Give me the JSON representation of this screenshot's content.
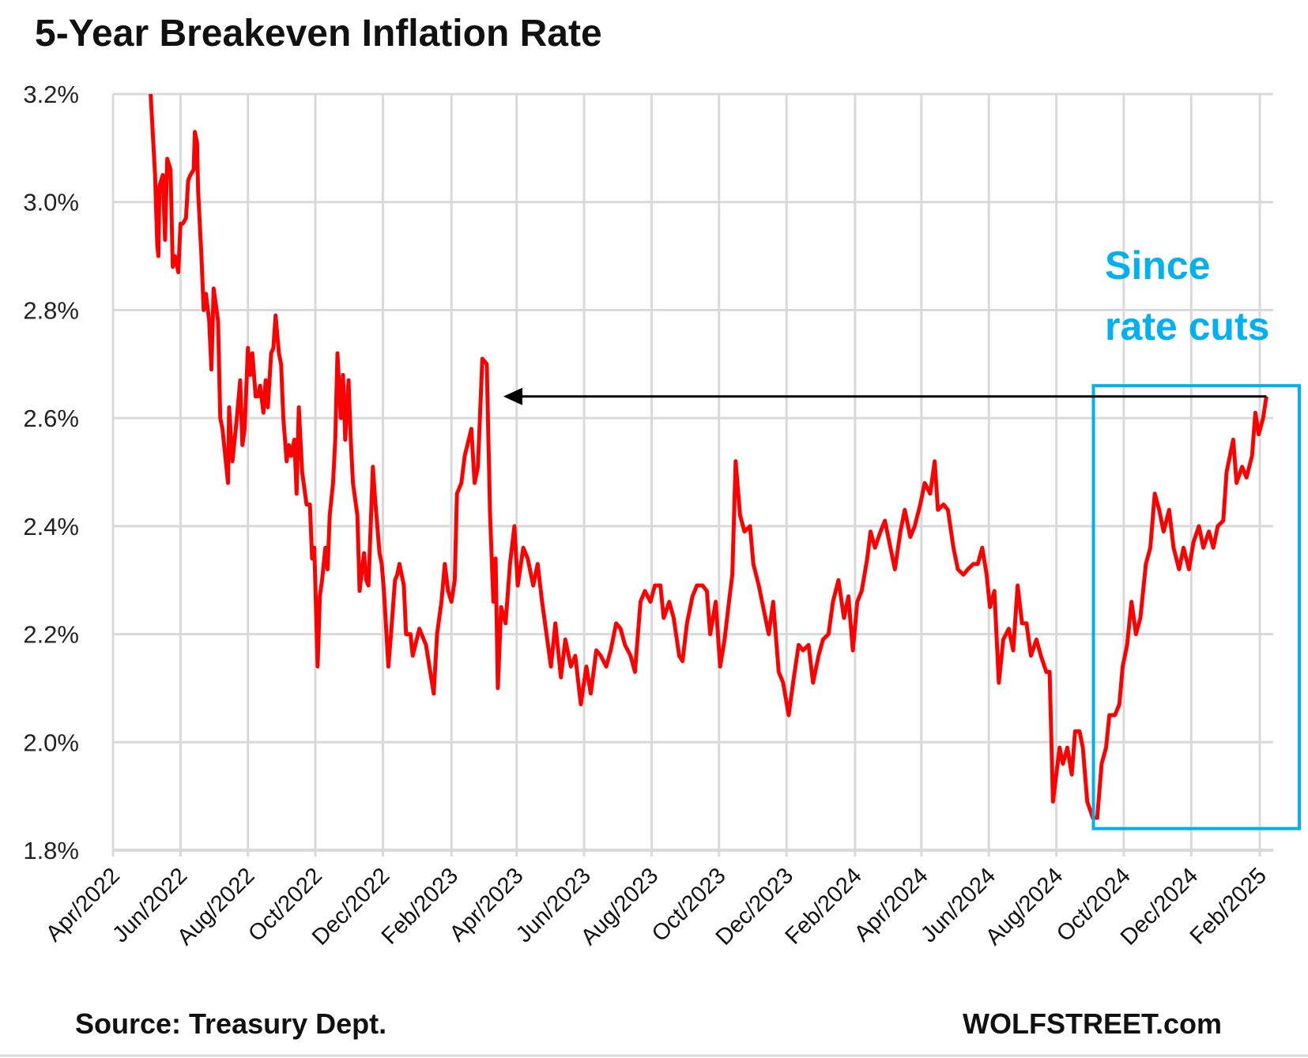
{
  "chart_data": {
    "type": "line",
    "title": "5-Year Breakeven Inflation Rate",
    "xlabel": "",
    "ylabel": "",
    "x_unit": "days since 2022-04-01",
    "ylim": [
      1.8,
      3.2
    ],
    "yticks": [
      "1.8%",
      "2.0%",
      "2.2%",
      "2.4%",
      "2.6%",
      "2.8%",
      "3.0%",
      "3.2%"
    ],
    "ytick_values": [
      1.8,
      2.0,
      2.2,
      2.4,
      2.6,
      2.8,
      3.0,
      3.2
    ],
    "xticks": [
      {
        "label": "Apr/2022",
        "day": 0
      },
      {
        "label": "Jun/2022",
        "day": 61
      },
      {
        "label": "Aug/2022",
        "day": 122
      },
      {
        "label": "Oct/2022",
        "day": 183
      },
      {
        "label": "Dec/2022",
        "day": 244
      },
      {
        "label": "Feb/2023",
        "day": 306
      },
      {
        "label": "Apr/2023",
        "day": 365
      },
      {
        "label": "Jun/2023",
        "day": 426
      },
      {
        "label": "Aug/2023",
        "day": 487
      },
      {
        "label": "Oct/2023",
        "day": 548
      },
      {
        "label": "Dec/2023",
        "day": 609
      },
      {
        "label": "Feb/2024",
        "day": 671
      },
      {
        "label": "Apr/2024",
        "day": 731
      },
      {
        "label": "Jun/2024",
        "day": 792
      },
      {
        "label": "Aug/2024",
        "day": 853
      },
      {
        "label": "Oct/2024",
        "day": 914
      },
      {
        "label": "Dec/2024",
        "day": 975
      },
      {
        "label": "Feb/2025",
        "day": 1037
      }
    ],
    "xlim_days": [
      0,
      1049
    ],
    "grid": true,
    "series": [
      {
        "name": "5-Year Breakeven Inflation Rate",
        "color": "#FF0000",
        "points": [
          [
            34,
            3.2
          ],
          [
            38,
            3.05
          ],
          [
            40,
            2.92
          ],
          [
            41,
            2.9
          ],
          [
            42,
            3.03
          ],
          [
            45,
            3.05
          ],
          [
            47,
            2.93
          ],
          [
            49,
            3.08
          ],
          [
            52,
            3.06
          ],
          [
            54,
            2.88
          ],
          [
            56,
            2.9
          ],
          [
            59,
            2.87
          ],
          [
            61,
            2.96
          ],
          [
            63,
            2.96
          ],
          [
            66,
            2.97
          ],
          [
            68,
            3.04
          ],
          [
            70,
            3.05
          ],
          [
            73,
            3.06
          ],
          [
            74,
            3.13
          ],
          [
            76,
            3.11
          ],
          [
            77,
            3.02
          ],
          [
            80,
            2.9
          ],
          [
            82,
            2.8
          ],
          [
            84,
            2.83
          ],
          [
            87,
            2.78
          ],
          [
            89,
            2.69
          ],
          [
            91,
            2.84
          ],
          [
            95,
            2.78
          ],
          [
            97,
            2.6
          ],
          [
            99,
            2.58
          ],
          [
            102,
            2.52
          ],
          [
            104,
            2.48
          ],
          [
            105,
            2.62
          ],
          [
            108,
            2.52
          ],
          [
            110,
            2.56
          ],
          [
            112,
            2.6
          ],
          [
            115,
            2.67
          ],
          [
            117,
            2.55
          ],
          [
            119,
            2.58
          ],
          [
            122,
            2.73
          ],
          [
            124,
            2.68
          ],
          [
            126,
            2.72
          ],
          [
            129,
            2.64
          ],
          [
            131,
            2.64
          ],
          [
            133,
            2.66
          ],
          [
            136,
            2.61
          ],
          [
            138,
            2.67
          ],
          [
            140,
            2.62
          ],
          [
            143,
            2.72
          ],
          [
            145,
            2.73
          ],
          [
            147,
            2.79
          ],
          [
            150,
            2.72
          ],
          [
            152,
            2.7
          ],
          [
            154,
            2.6
          ],
          [
            157,
            2.52
          ],
          [
            159,
            2.55
          ],
          [
            161,
            2.53
          ],
          [
            164,
            2.56
          ],
          [
            166,
            2.46
          ],
          [
            168,
            2.62
          ],
          [
            171,
            2.5
          ],
          [
            173,
            2.47
          ],
          [
            175,
            2.44
          ],
          [
            178,
            2.44
          ],
          [
            180,
            2.34
          ],
          [
            182,
            2.36
          ],
          [
            185,
            2.14
          ],
          [
            187,
            2.27
          ],
          [
            189,
            2.3
          ],
          [
            192,
            2.36
          ],
          [
            194,
            2.32
          ],
          [
            196,
            2.42
          ],
          [
            199,
            2.48
          ],
          [
            201,
            2.56
          ],
          [
            203,
            2.72
          ],
          [
            206,
            2.6
          ],
          [
            208,
            2.68
          ],
          [
            210,
            2.56
          ],
          [
            213,
            2.67
          ],
          [
            215,
            2.56
          ],
          [
            217,
            2.48
          ],
          [
            221,
            2.42
          ],
          [
            223,
            2.28
          ],
          [
            227,
            2.35
          ],
          [
            229,
            2.3
          ],
          [
            231,
            2.29
          ],
          [
            235,
            2.51
          ],
          [
            237,
            2.45
          ],
          [
            241,
            2.35
          ],
          [
            243,
            2.33
          ],
          [
            245,
            2.28
          ],
          [
            249,
            2.14
          ],
          [
            251,
            2.19
          ],
          [
            255,
            2.3
          ],
          [
            257,
            2.31
          ],
          [
            259,
            2.33
          ],
          [
            263,
            2.29
          ],
          [
            265,
            2.2
          ],
          [
            269,
            2.2
          ],
          [
            271,
            2.16
          ],
          [
            277,
            2.21
          ],
          [
            279,
            2.2
          ],
          [
            283,
            2.18
          ],
          [
            290,
            2.09
          ],
          [
            293,
            2.2
          ],
          [
            297,
            2.26
          ],
          [
            300,
            2.33
          ],
          [
            303,
            2.28
          ],
          [
            306,
            2.26
          ],
          [
            309,
            2.3
          ],
          [
            311,
            2.46
          ],
          [
            315,
            2.48
          ],
          [
            318,
            2.53
          ],
          [
            324,
            2.58
          ],
          [
            327,
            2.48
          ],
          [
            330,
            2.51
          ],
          [
            334,
            2.71
          ],
          [
            338,
            2.7
          ],
          [
            341,
            2.42
          ],
          [
            344,
            2.26
          ],
          [
            346,
            2.34
          ],
          [
            348,
            2.1
          ],
          [
            351,
            2.25
          ],
          [
            355,
            2.22
          ],
          [
            359,
            2.33
          ],
          [
            363,
            2.4
          ],
          [
            366,
            2.29
          ],
          [
            371,
            2.36
          ],
          [
            375,
            2.34
          ],
          [
            380,
            2.29
          ],
          [
            384,
            2.33
          ],
          [
            388,
            2.26
          ],
          [
            392,
            2.2
          ],
          [
            396,
            2.14
          ],
          [
            400,
            2.22
          ],
          [
            405,
            2.12
          ],
          [
            409,
            2.19
          ],
          [
            414,
            2.14
          ],
          [
            418,
            2.16
          ],
          [
            423,
            2.07
          ],
          [
            428,
            2.14
          ],
          [
            432,
            2.09
          ],
          [
            437,
            2.17
          ],
          [
            441,
            2.16
          ],
          [
            446,
            2.14
          ],
          [
            450,
            2.17
          ],
          [
            455,
            2.22
          ],
          [
            459,
            2.21
          ],
          [
            463,
            2.18
          ],
          [
            468,
            2.16
          ],
          [
            472,
            2.13
          ],
          [
            477,
            2.26
          ],
          [
            481,
            2.28
          ],
          [
            486,
            2.26
          ],
          [
            490,
            2.29
          ],
          [
            495,
            2.29
          ],
          [
            498,
            2.23
          ],
          [
            503,
            2.26
          ],
          [
            507,
            2.23
          ],
          [
            512,
            2.16
          ],
          [
            515,
            2.15
          ],
          [
            519,
            2.22
          ],
          [
            524,
            2.27
          ],
          [
            528,
            2.29
          ],
          [
            533,
            2.29
          ],
          [
            537,
            2.28
          ],
          [
            540,
            2.2
          ],
          [
            545,
            2.26
          ],
          [
            549,
            2.14
          ],
          [
            553,
            2.19
          ],
          [
            557,
            2.26
          ],
          [
            560,
            2.31
          ],
          [
            563,
            2.52
          ],
          [
            567,
            2.42
          ],
          [
            571,
            2.39
          ],
          [
            576,
            2.4
          ],
          [
            579,
            2.33
          ],
          [
            584,
            2.29
          ],
          [
            588,
            2.25
          ],
          [
            593,
            2.2
          ],
          [
            597,
            2.26
          ],
          [
            602,
            2.13
          ],
          [
            606,
            2.11
          ],
          [
            611,
            2.05
          ],
          [
            615,
            2.11
          ],
          [
            620,
            2.18
          ],
          [
            624,
            2.17
          ],
          [
            629,
            2.18
          ],
          [
            633,
            2.11
          ],
          [
            638,
            2.16
          ],
          [
            642,
            2.19
          ],
          [
            647,
            2.2
          ],
          [
            651,
            2.26
          ],
          [
            656,
            2.3
          ],
          [
            661,
            2.23
          ],
          [
            665,
            2.27
          ],
          [
            669,
            2.17
          ],
          [
            673,
            2.26
          ],
          [
            677,
            2.28
          ],
          [
            682,
            2.34
          ],
          [
            685,
            2.39
          ],
          [
            689,
            2.36
          ],
          [
            694,
            2.39
          ],
          [
            698,
            2.41
          ],
          [
            703,
            2.36
          ],
          [
            707,
            2.32
          ],
          [
            712,
            2.39
          ],
          [
            716,
            2.43
          ],
          [
            721,
            2.38
          ],
          [
            725,
            2.4
          ],
          [
            730,
            2.44
          ],
          [
            734,
            2.48
          ],
          [
            739,
            2.46
          ],
          [
            743,
            2.52
          ],
          [
            746,
            2.43
          ],
          [
            751,
            2.44
          ],
          [
            755,
            2.43
          ],
          [
            760,
            2.36
          ],
          [
            764,
            2.32
          ],
          [
            769,
            2.31
          ],
          [
            773,
            2.32
          ],
          [
            778,
            2.33
          ],
          [
            782,
            2.33
          ],
          [
            786,
            2.36
          ],
          [
            790,
            2.31
          ],
          [
            793,
            2.25
          ],
          [
            797,
            2.28
          ],
          [
            801,
            2.11
          ],
          [
            805,
            2.19
          ],
          [
            810,
            2.21
          ],
          [
            814,
            2.17
          ],
          [
            818,
            2.29
          ],
          [
            822,
            2.22
          ],
          [
            826,
            2.22
          ],
          [
            830,
            2.16
          ],
          [
            835,
            2.19
          ],
          [
            839,
            2.16
          ],
          [
            844,
            2.13
          ],
          [
            847,
            2.13
          ],
          [
            850,
            1.89
          ],
          [
            853,
            1.94
          ],
          [
            856,
            1.99
          ],
          [
            859,
            1.96
          ],
          [
            863,
            1.99
          ],
          [
            867,
            1.94
          ],
          [
            870,
            2.02
          ],
          [
            874,
            2.02
          ],
          [
            877,
            1.99
          ],
          [
            881,
            1.89
          ],
          [
            886,
            1.86
          ],
          [
            890,
            1.86
          ],
          [
            894,
            1.96
          ],
          [
            898,
            1.99
          ],
          [
            901,
            2.05
          ],
          [
            906,
            2.05
          ],
          [
            910,
            2.07
          ],
          [
            913,
            2.14
          ],
          [
            917,
            2.18
          ],
          [
            921,
            2.26
          ],
          [
            925,
            2.2
          ],
          [
            929,
            2.23
          ],
          [
            934,
            2.33
          ],
          [
            938,
            2.36
          ],
          [
            942,
            2.46
          ],
          [
            946,
            2.43
          ],
          [
            950,
            2.39
          ],
          [
            955,
            2.43
          ],
          [
            959,
            2.36
          ],
          [
            964,
            2.32
          ],
          [
            968,
            2.36
          ],
          [
            973,
            2.32
          ],
          [
            977,
            2.37
          ],
          [
            982,
            2.4
          ],
          [
            986,
            2.36
          ],
          [
            991,
            2.39
          ],
          [
            995,
            2.36
          ],
          [
            999,
            2.4
          ],
          [
            1004,
            2.41
          ],
          [
            1007,
            2.5
          ],
          [
            1013,
            2.56
          ],
          [
            1016,
            2.48
          ],
          [
            1021,
            2.51
          ],
          [
            1025,
            2.49
          ],
          [
            1030,
            2.53
          ],
          [
            1033,
            2.61
          ],
          [
            1036,
            2.57
          ],
          [
            1040,
            2.6
          ],
          [
            1043,
            2.64
          ]
        ]
      }
    ],
    "annotations": {
      "label_line1": "Since",
      "label_line2": "rate cuts",
      "color": "#00B0F0",
      "box_days": [
        888,
        1052
      ],
      "box_values": [
        1.84,
        2.66
      ],
      "arrow_value": 2.64,
      "arrow_from_day": 1043,
      "arrow_to_day": 353
    },
    "source": "Source: Treasury Dept.",
    "brand": "WOLFSTREET.com"
  }
}
